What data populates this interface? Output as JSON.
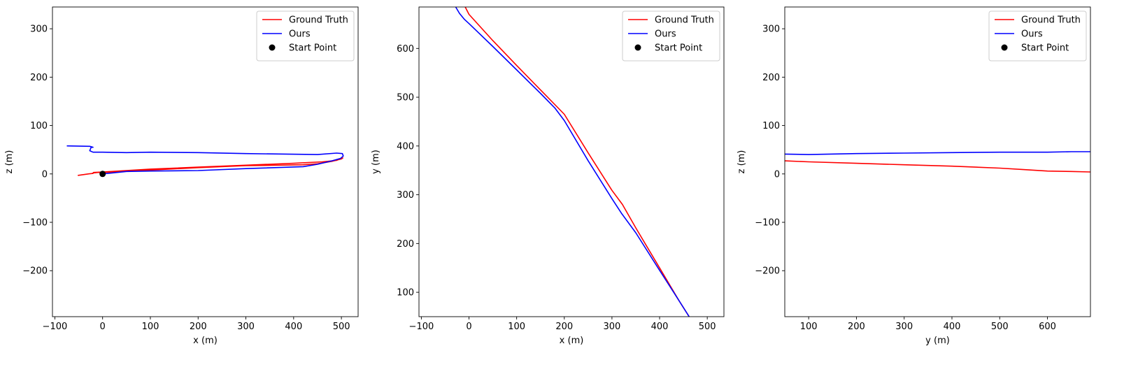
{
  "legend": {
    "ground_truth": "Ground Truth",
    "ours": "Ours",
    "start_point": "Start Point"
  },
  "colors": {
    "ground_truth": "#ff0000",
    "ours": "#0000ff",
    "start_point": "#000000"
  },
  "chart_data": [
    {
      "type": "line",
      "xlabel": "x (m)",
      "ylabel": "z (m)",
      "xlim": [
        -105,
        535
      ],
      "ylim": [
        -295,
        345
      ],
      "xticks": [
        -100,
        0,
        100,
        200,
        300,
        400,
        500
      ],
      "yticks": [
        -200,
        -100,
        0,
        100,
        200,
        300
      ],
      "xtick_labels": [
        "−100",
        "0",
        "100",
        "200",
        "300",
        "400",
        "500"
      ],
      "ytick_labels": [
        "−200",
        "−100",
        "0",
        "100",
        "200",
        "300"
      ],
      "legend_position": "top-right",
      "series": [
        {
          "name": "Ground Truth",
          "x": [
            -52,
            -30,
            -20,
            -19,
            0,
            100,
            200,
            300,
            400,
            460,
            490,
            503,
            500,
            480,
            450,
            420,
            300,
            200,
            100,
            0,
            -10,
            -20,
            -22
          ],
          "y": [
            -3,
            0,
            1,
            3,
            4,
            10,
            14,
            18,
            22,
            25,
            28,
            33,
            31,
            26,
            21,
            19,
            17,
            13,
            8,
            3,
            3,
            2,
            1
          ]
        },
        {
          "name": "Ours",
          "x": [
            0,
            50,
            100,
            200,
            300,
            420,
            450,
            480,
            498,
            504,
            502,
            490,
            450,
            300,
            200,
            100,
            50,
            0,
            -20,
            -27,
            -24,
            -20,
            -27,
            -75
          ],
          "y": [
            0,
            5,
            6,
            7,
            11,
            15,
            20,
            27,
            32,
            37,
            42,
            43,
            40,
            42,
            44,
            45,
            44,
            45,
            45,
            48,
            55,
            55,
            57,
            58
          ]
        }
      ],
      "start_point": {
        "x": 0,
        "y": 0
      }
    },
    {
      "type": "line",
      "xlabel": "x (m)",
      "ylabel": "y (m)",
      "xlim": [
        -105,
        535
      ],
      "ylim": [
        50,
        685
      ],
      "xticks": [
        -100,
        0,
        100,
        200,
        300,
        400,
        500
      ],
      "yticks": [
        100,
        200,
        300,
        400,
        500,
        600
      ],
      "xtick_labels": [
        "−100",
        "0",
        "100",
        "200",
        "300",
        "400",
        "500"
      ],
      "ytick_labels": [
        "100",
        "200",
        "300",
        "400",
        "500",
        "600"
      ],
      "legend_position": "top-right",
      "series": [
        {
          "name": "Ground Truth",
          "x": [
            -8,
            0,
            50,
            100,
            150,
            185,
            200,
            250,
            300,
            322,
            350,
            400,
            440,
            462
          ],
          "y": [
            685,
            670,
            616,
            565,
            515,
            480,
            465,
            386,
            309,
            280,
            232,
            150,
            84,
            50
          ]
        },
        {
          "name": "Ours",
          "x": [
            -28,
            -20,
            -10,
            0,
            50,
            100,
            150,
            180,
            200,
            250,
            300,
            320,
            350,
            400,
            440,
            462
          ],
          "y": [
            685,
            672,
            660,
            651,
            604,
            556,
            508,
            478,
            452,
            370,
            292,
            262,
            222,
            145,
            84,
            50
          ]
        }
      ]
    },
    {
      "type": "line",
      "xlabel": "y (m)",
      "ylabel": "z (m)",
      "xlim": [
        50,
        690
      ],
      "ylim": [
        -295,
        345
      ],
      "xticks": [
        100,
        200,
        300,
        400,
        500,
        600
      ],
      "yticks": [
        -200,
        -100,
        0,
        100,
        200,
        300
      ],
      "xtick_labels": [
        "100",
        "200",
        "300",
        "400",
        "500",
        "600"
      ],
      "ytick_labels": [
        "−200",
        "−100",
        "0",
        "100",
        "200",
        "300"
      ],
      "legend_position": "top-right",
      "series": [
        {
          "name": "Ground Truth",
          "x": [
            50,
            100,
            200,
            300,
            400,
            500,
            550,
            600,
            650,
            690
          ],
          "y": [
            27,
            25,
            22,
            19,
            16,
            12,
            9,
            6,
            5,
            4
          ]
        },
        {
          "name": "Ours",
          "x": [
            50,
            100,
            200,
            300,
            400,
            500,
            550,
            600,
            650,
            690
          ],
          "y": [
            41,
            40,
            42,
            43,
            44,
            45,
            45,
            45,
            46,
            46
          ]
        }
      ]
    }
  ]
}
